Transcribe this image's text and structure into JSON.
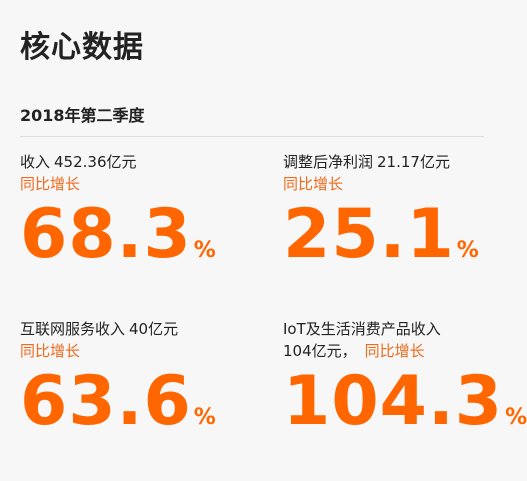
{
  "header": {
    "title": "核心数据",
    "subtitle": "2018年第二季度"
  },
  "metrics": [
    {
      "name": "收入",
      "amount": "452.36亿元",
      "growth_label": "同比增长",
      "value": "68.3",
      "unit": "%"
    },
    {
      "name": "调整后净利润",
      "amount": "21.17亿元",
      "growth_label": "同比增长",
      "value": "25.1",
      "unit": "%"
    },
    {
      "name": "互联网服务收入",
      "amount": "40亿元",
      "growth_label": "同比增长",
      "value": "63.6",
      "unit": "%"
    },
    {
      "name": "IoT及生活消费产品收入",
      "amount": "104亿元，",
      "growth_label": "同比增长",
      "value": "104.3",
      "unit": "%"
    }
  ],
  "colors": {
    "accent": "#ff6600",
    "growth_text": "#f06a1c",
    "text": "#222222",
    "background": "#f7f7f7"
  }
}
